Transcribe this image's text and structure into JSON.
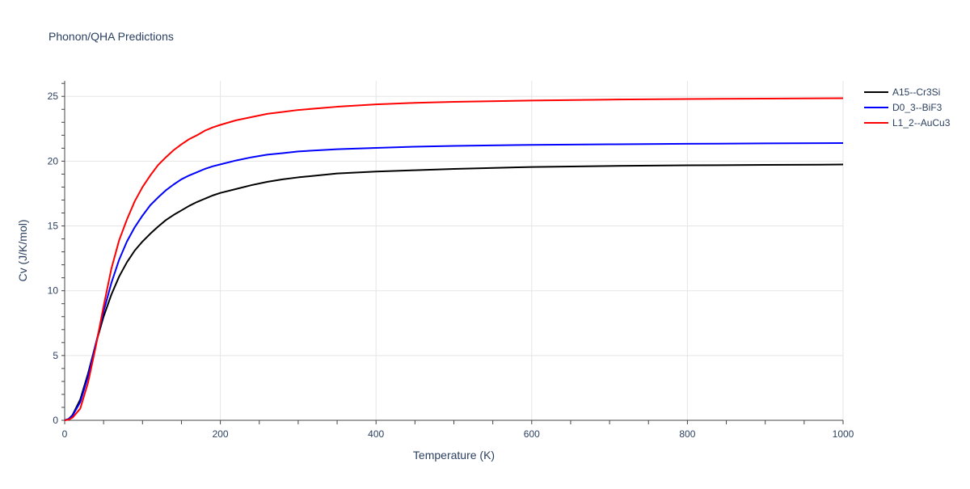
{
  "chart_data": {
    "type": "line",
    "title": "Phonon/QHA Predictions",
    "xlabel": "Temperature (K)",
    "ylabel": "Cv (J/K/mol)",
    "xlim": [
      0,
      1000
    ],
    "ylim": [
      0,
      26.2
    ],
    "xticks": [
      0,
      200,
      400,
      600,
      800,
      1000
    ],
    "xtick_labels": [
      "0",
      "200",
      "400",
      "600",
      "800",
      "1000"
    ],
    "yticks": [
      0,
      5,
      10,
      15,
      20,
      25
    ],
    "ytick_labels": [
      "0",
      "5",
      "10",
      "15",
      "20",
      "25"
    ],
    "grid": true,
    "legend_position": "top-right",
    "series": [
      {
        "name": "A15--Cr3Si",
        "color": "#000000",
        "x": [
          0,
          5,
          10,
          20,
          30,
          40,
          50,
          60,
          70,
          80,
          90,
          100,
          110,
          120,
          130,
          140,
          150,
          160,
          170,
          180,
          190,
          200,
          220,
          240,
          260,
          280,
          300,
          350,
          400,
          450,
          500,
          600,
          700,
          800,
          900,
          1000
        ],
        "y": [
          0,
          0.1,
          0.4,
          1.6,
          3.6,
          5.9,
          8.0,
          9.7,
          11.1,
          12.2,
          13.1,
          13.8,
          14.4,
          14.95,
          15.45,
          15.85,
          16.2,
          16.55,
          16.85,
          17.1,
          17.35,
          17.55,
          17.85,
          18.15,
          18.4,
          18.6,
          18.75,
          19.05,
          19.2,
          19.3,
          19.4,
          19.55,
          19.63,
          19.68,
          19.71,
          19.74
        ]
      },
      {
        "name": "D0_3--BiF3",
        "color": "#0000ff",
        "x": [
          0,
          5,
          10,
          20,
          30,
          40,
          50,
          60,
          70,
          80,
          90,
          100,
          110,
          120,
          130,
          140,
          150,
          160,
          170,
          180,
          190,
          200,
          220,
          240,
          260,
          280,
          300,
          350,
          400,
          450,
          500,
          600,
          700,
          800,
          900,
          1000
        ],
        "y": [
          0,
          0.1,
          0.35,
          1.4,
          3.4,
          5.9,
          8.4,
          10.6,
          12.4,
          13.8,
          14.9,
          15.8,
          16.6,
          17.2,
          17.75,
          18.2,
          18.6,
          18.9,
          19.15,
          19.4,
          19.6,
          19.75,
          20.05,
          20.3,
          20.5,
          20.62,
          20.75,
          20.92,
          21.02,
          21.12,
          21.18,
          21.26,
          21.3,
          21.34,
          21.37,
          21.4
        ]
      },
      {
        "name": "L1_2--AuCu3",
        "color": "#ff0000",
        "x": [
          0,
          5,
          10,
          20,
          30,
          40,
          50,
          60,
          70,
          80,
          90,
          100,
          110,
          120,
          130,
          140,
          150,
          160,
          170,
          180,
          190,
          200,
          220,
          240,
          260,
          280,
          300,
          350,
          400,
          450,
          500,
          600,
          700,
          800,
          900,
          1000
        ],
        "y": [
          0,
          0.05,
          0.2,
          0.9,
          2.9,
          5.7,
          8.8,
          11.7,
          13.9,
          15.5,
          16.9,
          18.0,
          18.9,
          19.7,
          20.3,
          20.85,
          21.3,
          21.7,
          22.0,
          22.35,
          22.6,
          22.8,
          23.15,
          23.4,
          23.65,
          23.8,
          23.95,
          24.2,
          24.38,
          24.5,
          24.58,
          24.68,
          24.75,
          24.8,
          24.83,
          24.86
        ]
      }
    ]
  }
}
